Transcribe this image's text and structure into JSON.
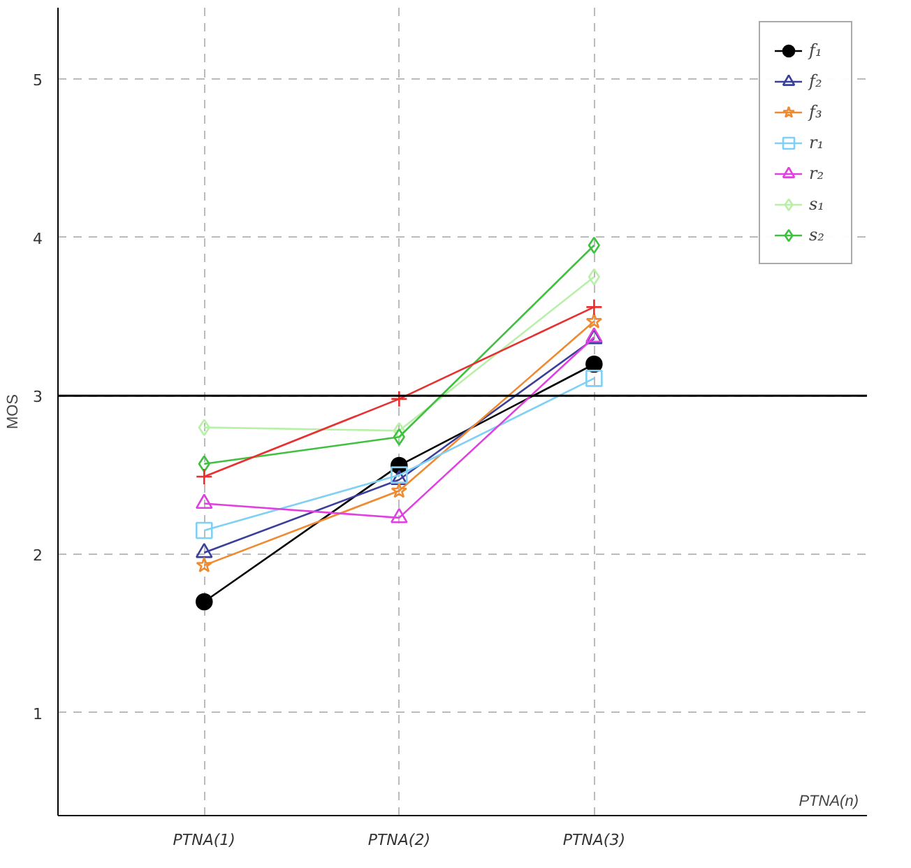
{
  "chart_data": {
    "type": "line",
    "annotations": [
      "PTNA(n)"
    ],
    "ylabel": "MOS",
    "categories": [
      "PTNA(1)",
      "PTNA(2)",
      "PTNA(3)"
    ],
    "ylim": [
      0.35,
      5.45
    ],
    "yticks": [
      1,
      2,
      3,
      4,
      5
    ],
    "grid": true,
    "legend": "top right",
    "ref_lines": [
      {
        "axis": "y",
        "value": 3,
        "label": null,
        "color": "#000000",
        "line_style": "solid"
      }
    ],
    "series": [
      {
        "name": "f₁",
        "color": "#000000",
        "marker": "circle",
        "values": [
          1.7,
          2.56,
          3.2
        ]
      },
      {
        "name": "f₂",
        "color": "#3a3f9a",
        "marker": "triangle",
        "values": [
          2.01,
          2.47,
          3.36
        ]
      },
      {
        "name": "f₃",
        "color": "#f08a30",
        "marker": "star",
        "values": [
          1.93,
          2.4,
          3.47
        ]
      },
      {
        "name": "r₁",
        "color": "#7fd0f5",
        "marker": "square",
        "values": [
          2.15,
          2.5,
          3.11
        ]
      },
      {
        "name": "r₂",
        "color": "#e040e0",
        "marker": "triangle",
        "values": [
          2.32,
          2.23,
          3.37
        ]
      },
      {
        "name": "s₁",
        "color": "#b8f0a8",
        "marker": "diamond",
        "values": [
          2.8,
          2.78,
          3.75
        ]
      },
      {
        "name": "s₂",
        "color": "#40c040",
        "marker": "diamond",
        "values": [
          2.57,
          2.74,
          3.95
        ]
      },
      {
        "color": "#e83030",
        "marker": "cross",
        "values": [
          2.49,
          2.98,
          3.56
        ]
      }
    ]
  }
}
